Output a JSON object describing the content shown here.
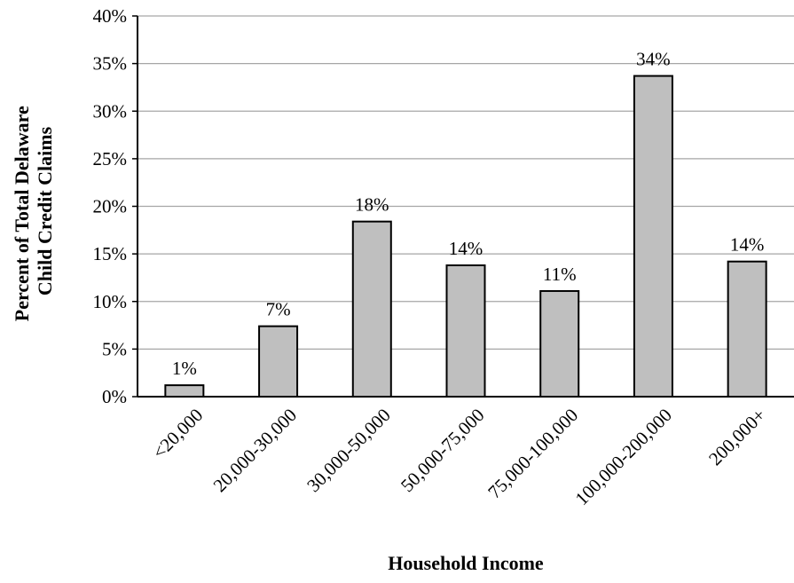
{
  "chart_data": {
    "type": "bar",
    "title": "",
    "xlabel": "Household Income",
    "ylabel_lines": [
      "Percent of Total Delaware",
      "Child Credit Claims"
    ],
    "categories": [
      "<20,000",
      "20,000-30,000",
      "30,000-50,000",
      "50,000-75,000",
      "75,000-100,000",
      "100,000-200,000",
      "200,000+"
    ],
    "values": [
      1.2,
      7.4,
      18.4,
      13.8,
      11.1,
      33.7,
      14.2
    ],
    "data_labels": [
      "1%",
      "7%",
      "18%",
      "14%",
      "11%",
      "34%",
      "14%"
    ],
    "ylim": [
      0,
      40
    ],
    "yticks": [
      0,
      5,
      10,
      15,
      20,
      25,
      30,
      35,
      40
    ],
    "ytick_labels": [
      "0%",
      "5%",
      "10%",
      "15%",
      "20%",
      "25%",
      "30%",
      "35%",
      "40%"
    ],
    "grid": true,
    "bar_color": "#bfbfbf",
    "bar_edge_color": "#000000",
    "grid_color": "#a6a6a6"
  }
}
